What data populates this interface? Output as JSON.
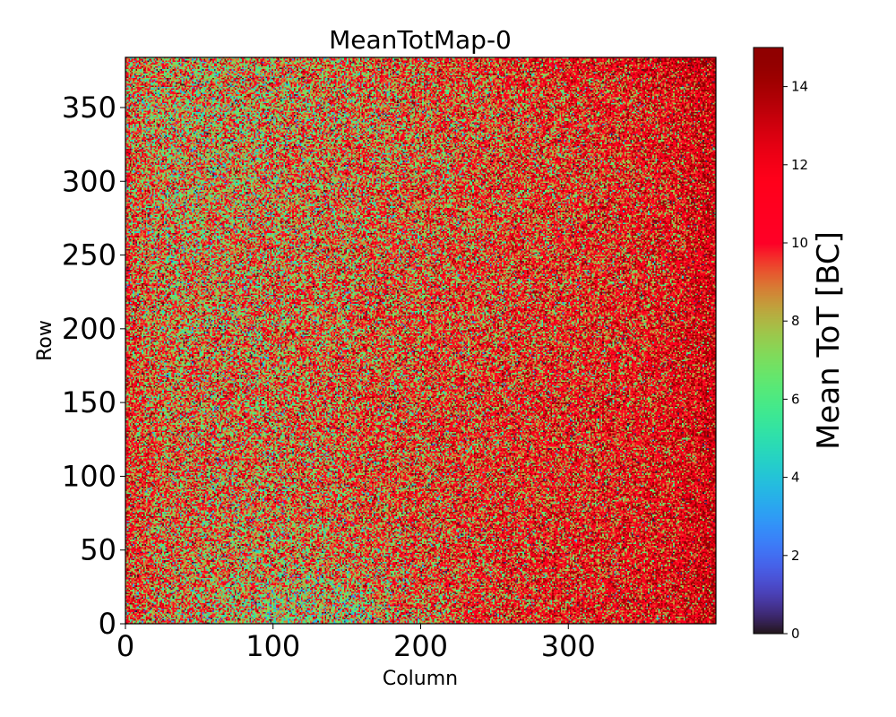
{
  "chart_data": {
    "type": "heatmap",
    "title": "MeanTotMap-0",
    "xlabel": "Column",
    "ylabel": "Row",
    "colorbar_label": "Mean ToT [BC]",
    "colormap": "turbo",
    "xlim": [
      0,
      400
    ],
    "ylim": [
      0,
      384
    ],
    "clim": [
      0,
      15
    ],
    "x_ticks": [
      0,
      100,
      200,
      300
    ],
    "y_ticks": [
      0,
      50,
      100,
      150,
      200,
      250,
      300,
      350
    ],
    "colorbar_ticks": [
      0,
      2,
      4,
      6,
      8,
      10,
      12,
      14
    ],
    "grid": false,
    "approx_mean_tot": {
      "bottom_left_corner": 6,
      "left_edge_center": 11,
      "center": 9,
      "top_left": 6,
      "top_right": 12,
      "bottom_right_corner": 13
    }
  }
}
